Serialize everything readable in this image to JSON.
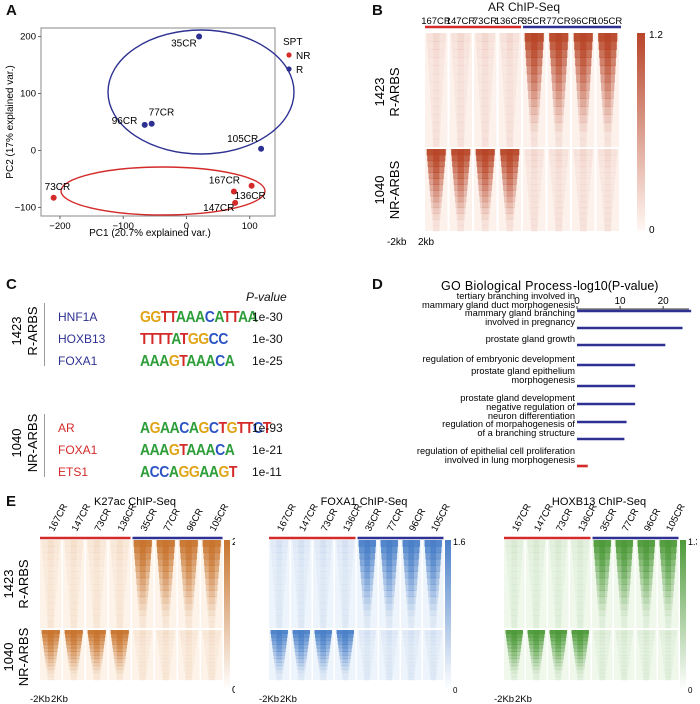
{
  "panels": {
    "a": "A",
    "b": "B",
    "c": "C",
    "d": "D",
    "e": "E"
  },
  "colors": {
    "nr": "#d42a2a",
    "r": "#2e3192",
    "red_hm": "#c0502a",
    "blue_hm": "#4a80c8",
    "green_hm": "#4e9a3a",
    "orange_hm": "#c8742e"
  },
  "pca": {
    "chart_data": {
      "type": "scatter",
      "xlabel": "PC1 (20.7% explained var.)",
      "ylabel": "PC2 (17% explained var.)",
      "xlim": [
        -230,
        140
      ],
      "ylim": [
        -115,
        215
      ],
      "xticks": [
        -200,
        -100,
        0,
        100
      ],
      "yticks": [
        -100,
        -50,
        0,
        50,
        100,
        150,
        200
      ],
      "xtick_labels": [
        "−200",
        "−100",
        "0",
        "100"
      ],
      "ytick_labels": [
        "−100",
        "−50",
        "0",
        "50",
        "100",
        "150",
        "200"
      ],
      "legend_title": "SPT",
      "series": [
        {
          "name": "NR",
          "color": "#d42a2a",
          "points": [
            {
              "label": "73CR",
              "x": -210,
              "y": -83
            },
            {
              "label": "167CR",
              "x": 75,
              "y": -72
            },
            {
              "label": "147CR",
              "x": 77,
              "y": -92
            },
            {
              "label": "136CR",
              "x": 103,
              "y": -62
            }
          ]
        },
        {
          "name": "R",
          "color": "#2e3192",
          "points": [
            {
              "label": "35CR",
              "x": 20,
              "y": 200
            },
            {
              "label": "77CR",
              "x": -55,
              "y": 47
            },
            {
              "label": "96CR",
              "x": -66,
              "y": 45
            },
            {
              "label": "105CR",
              "x": 118,
              "y": 3
            }
          ]
        }
      ]
    }
  },
  "ar_chip": {
    "title": "AR ChIP-Seq",
    "samples": [
      "167CR",
      "147CR",
      "73CR",
      "136CR",
      "35CR",
      "77CR",
      "96CR",
      "105CR"
    ],
    "row_groups": [
      {
        "n": "1423",
        "name": "R-ARBS"
      },
      {
        "n": "1040",
        "name": "NR-ARBS"
      }
    ],
    "scale_max": "1.2",
    "scale_min": "0",
    "x_left": "-2kb",
    "x_right": "2kb"
  },
  "motifs": {
    "pvalue_header": "P-value",
    "groups": [
      {
        "n": "1423",
        "name": "R-ARBS",
        "rows": [
          {
            "tf": "HNF1A",
            "logo": "GGTTAAACATTAA",
            "p": "1e-30"
          },
          {
            "tf": "HOXB13",
            "logo": "TTTTATGGCC",
            "p": "1e-30"
          },
          {
            "tf": "FOXA1",
            "logo": "AAAGTAAACA",
            "p": "1e-25"
          }
        ]
      },
      {
        "n": "1040",
        "name": "NR-ARBS",
        "rows": [
          {
            "tf": "AR",
            "logo": "AGAACAGCTGTTCT",
            "p": "1e-93"
          },
          {
            "tf": "FOXA1",
            "logo": "AAAGTAAACA",
            "p": "1e-21"
          },
          {
            "tf": "ETS1",
            "logo": "ACCAGGAAGT",
            "p": "1e-11"
          }
        ]
      }
    ]
  },
  "go": {
    "chart_data": {
      "type": "bar",
      "title": "GO Biological Process",
      "xlabel": "-log10(P-value)",
      "xlim": [
        0,
        26
      ],
      "xticks": [
        0,
        10,
        20
      ],
      "categories": [
        "tertiary branching involved in mammary gland duct morphogenesis",
        "mammary gland branching involved in pregnancy",
        "prostate gland growth",
        "regulation of embryonic development",
        "prostate gland epithelium morphogenesis",
        "prostate gland development",
        "negative regulation of neuron differentiation",
        "regulation of morpahogenesis of a branching structure",
        "regulation of epithelial cell proliferation involved in lung morphogenesis"
      ],
      "label_lines": [
        [
          "tertiary branching involved in",
          "mammary gland duct morphogenesis"
        ],
        [
          "mammary gland branching",
          "involved in pregnancy"
        ],
        [
          "prostate gland growth"
        ],
        [
          "regulation of embryonic development"
        ],
        [
          "prostate gland epithelium",
          "morphogenesis"
        ],
        [
          "prostate gland development"
        ],
        [
          "negative regulation of",
          "neuron differentiation"
        ],
        [
          "regulation of morpahogenesis of",
          "of a branching structure"
        ],
        [
          "regulation of epithelial cell proliferation",
          "involved in lung morphogenesis"
        ]
      ],
      "values": [
        26.5,
        24.5,
        20.5,
        13.5,
        13.5,
        13.5,
        11.5,
        11,
        2.5
      ],
      "colors": [
        "#2e3192",
        "#2e3192",
        "#2e3192",
        "#2e3192",
        "#2e3192",
        "#2e3192",
        "#2e3192",
        "#2e3192",
        "#d42a2a"
      ]
    }
  },
  "e_heatmaps": [
    {
      "title": "K27ac ChIP-Seq",
      "scale_max": "2.5",
      "scale_min": "0",
      "x_left": "-2Kb",
      "x_right": "2Kb"
    },
    {
      "title": "FOXA1 ChIP-Seq",
      "scale_max": "1.6",
      "scale_min": "0",
      "x_left": "-2Kb",
      "x_right": "2Kb"
    },
    {
      "title": "HOXB13 ChIP-Seq",
      "scale_max": "1.3",
      "scale_min": "0",
      "x_left": "-2Kb",
      "x_right": "2Kb"
    }
  ],
  "e_samples": [
    "167CR",
    "147CR",
    "73CR",
    "136CR",
    "35CR",
    "77CR",
    "96CR",
    "105CR"
  ],
  "e_row_groups": [
    {
      "n": "1423",
      "name": "R-ARBS"
    },
    {
      "n": "1040",
      "name": "NR-ARBS"
    }
  ]
}
